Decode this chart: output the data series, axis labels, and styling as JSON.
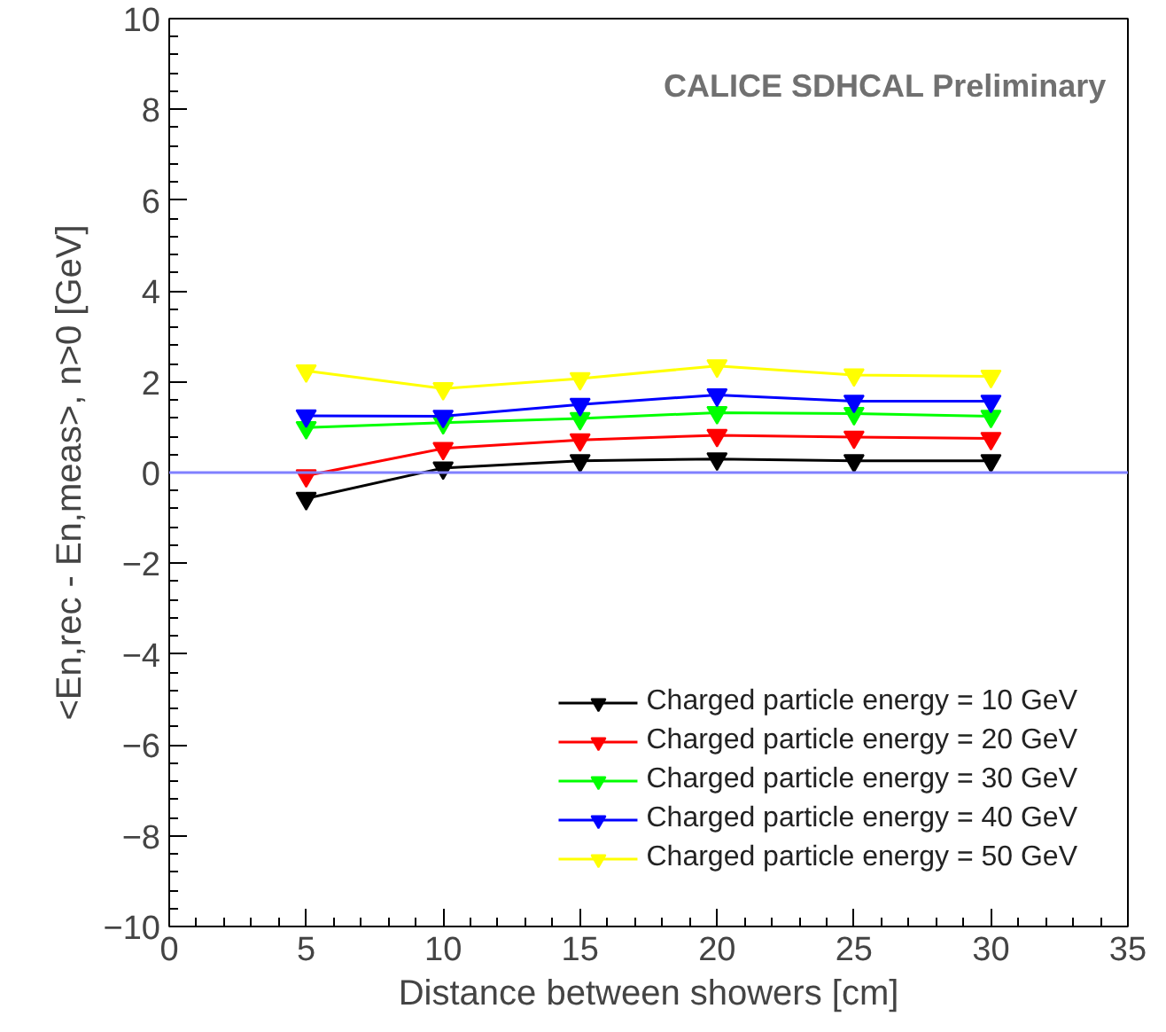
{
  "chart_data": {
    "type": "line",
    "xlabel": "Distance between showers [cm]",
    "ylabel": "<En,rec - En,meas>, n>0 [GeV]",
    "annotations": [
      "CALICE SDHCAL Preliminary"
    ],
    "x": [
      5,
      10,
      15,
      20,
      25,
      30
    ],
    "series": [
      {
        "name": "Charged particle energy = 10 GeV",
        "color": "#000000",
        "values": [
          -0.57,
          0.1,
          0.26,
          0.3,
          0.26,
          0.26
        ]
      },
      {
        "name": "Charged particle energy = 20 GeV",
        "color": "#ff0000",
        "values": [
          -0.07,
          0.53,
          0.72,
          0.82,
          0.78,
          0.75
        ]
      },
      {
        "name": "Charged particle energy = 30 GeV",
        "color": "#00ff00",
        "values": [
          0.99,
          1.1,
          1.19,
          1.32,
          1.3,
          1.24
        ]
      },
      {
        "name": "Charged particle energy = 40 GeV",
        "color": "#0000ff",
        "values": [
          1.25,
          1.24,
          1.5,
          1.71,
          1.57,
          1.57
        ]
      },
      {
        "name": "Charged particle energy = 50 GeV",
        "color": "#ffff00",
        "values": [
          2.24,
          1.85,
          2.07,
          2.35,
          2.15,
          2.12
        ]
      }
    ],
    "xlim": [
      0,
      35
    ],
    "xticks": [
      0,
      5,
      10,
      15,
      20,
      25,
      30,
      35
    ],
    "ylim": [
      -10,
      10
    ],
    "yticks": [
      -10,
      -8,
      -6,
      -4,
      -2,
      0,
      2,
      4,
      6,
      8,
      10
    ],
    "ref_lines": [
      {
        "axis": "y",
        "value": 0,
        "color": "#8080ff"
      }
    ],
    "marker": "triangle",
    "line_style": "solid",
    "grid": false,
    "legend": "bottom right"
  }
}
